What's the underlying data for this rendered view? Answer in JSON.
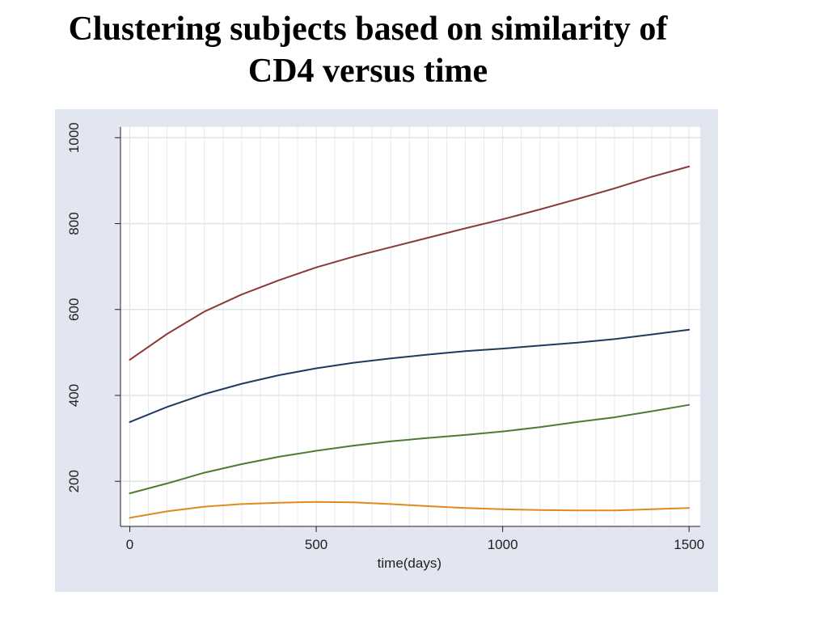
{
  "slide": {
    "title_line1": "Clustering subjects based on similarity of",
    "title_line2": "CD4 versus time"
  },
  "chart_data": {
    "type": "line",
    "title": "",
    "xlabel": "time(days)",
    "ylabel": "",
    "xlim": [
      -25,
      1530
    ],
    "ylim": [
      95,
      1025
    ],
    "xticks": [
      0,
      500,
      1000,
      1500
    ],
    "yticks": [
      200,
      400,
      600,
      800,
      1000
    ],
    "grid": true,
    "legend": "none",
    "background": "#e1e6f0",
    "plot_background": "#ffffff",
    "series": [
      {
        "color": "#8b3a3a",
        "x": [
          0,
          100,
          200,
          300,
          400,
          500,
          600,
          700,
          800,
          900,
          1000,
          1100,
          1200,
          1300,
          1400,
          1500
        ],
        "y": [
          483,
          543,
          595,
          635,
          668,
          698,
          723,
          745,
          767,
          789,
          810,
          833,
          857,
          882,
          909,
          933
        ]
      },
      {
        "color": "#1f3a5f",
        "x": [
          0,
          100,
          200,
          300,
          400,
          500,
          600,
          700,
          800,
          900,
          1000,
          1100,
          1200,
          1300,
          1400,
          1500
        ],
        "y": [
          338,
          373,
          403,
          427,
          447,
          463,
          476,
          486,
          495,
          503,
          509,
          516,
          523,
          531,
          542,
          553
        ]
      },
      {
        "color": "#4e7a32",
        "x": [
          0,
          100,
          200,
          300,
          400,
          500,
          600,
          700,
          800,
          900,
          1000,
          1100,
          1200,
          1300,
          1400,
          1500
        ],
        "y": [
          172,
          195,
          220,
          240,
          257,
          271,
          283,
          293,
          301,
          308,
          316,
          326,
          338,
          349,
          363,
          378
        ]
      },
      {
        "color": "#e08a1e",
        "x": [
          0,
          100,
          200,
          300,
          400,
          500,
          600,
          700,
          800,
          900,
          1000,
          1100,
          1200,
          1300,
          1400,
          1500
        ],
        "y": [
          115,
          130,
          141,
          147,
          150,
          152,
          151,
          147,
          142,
          138,
          135,
          133,
          132,
          132,
          135,
          138
        ]
      }
    ]
  }
}
